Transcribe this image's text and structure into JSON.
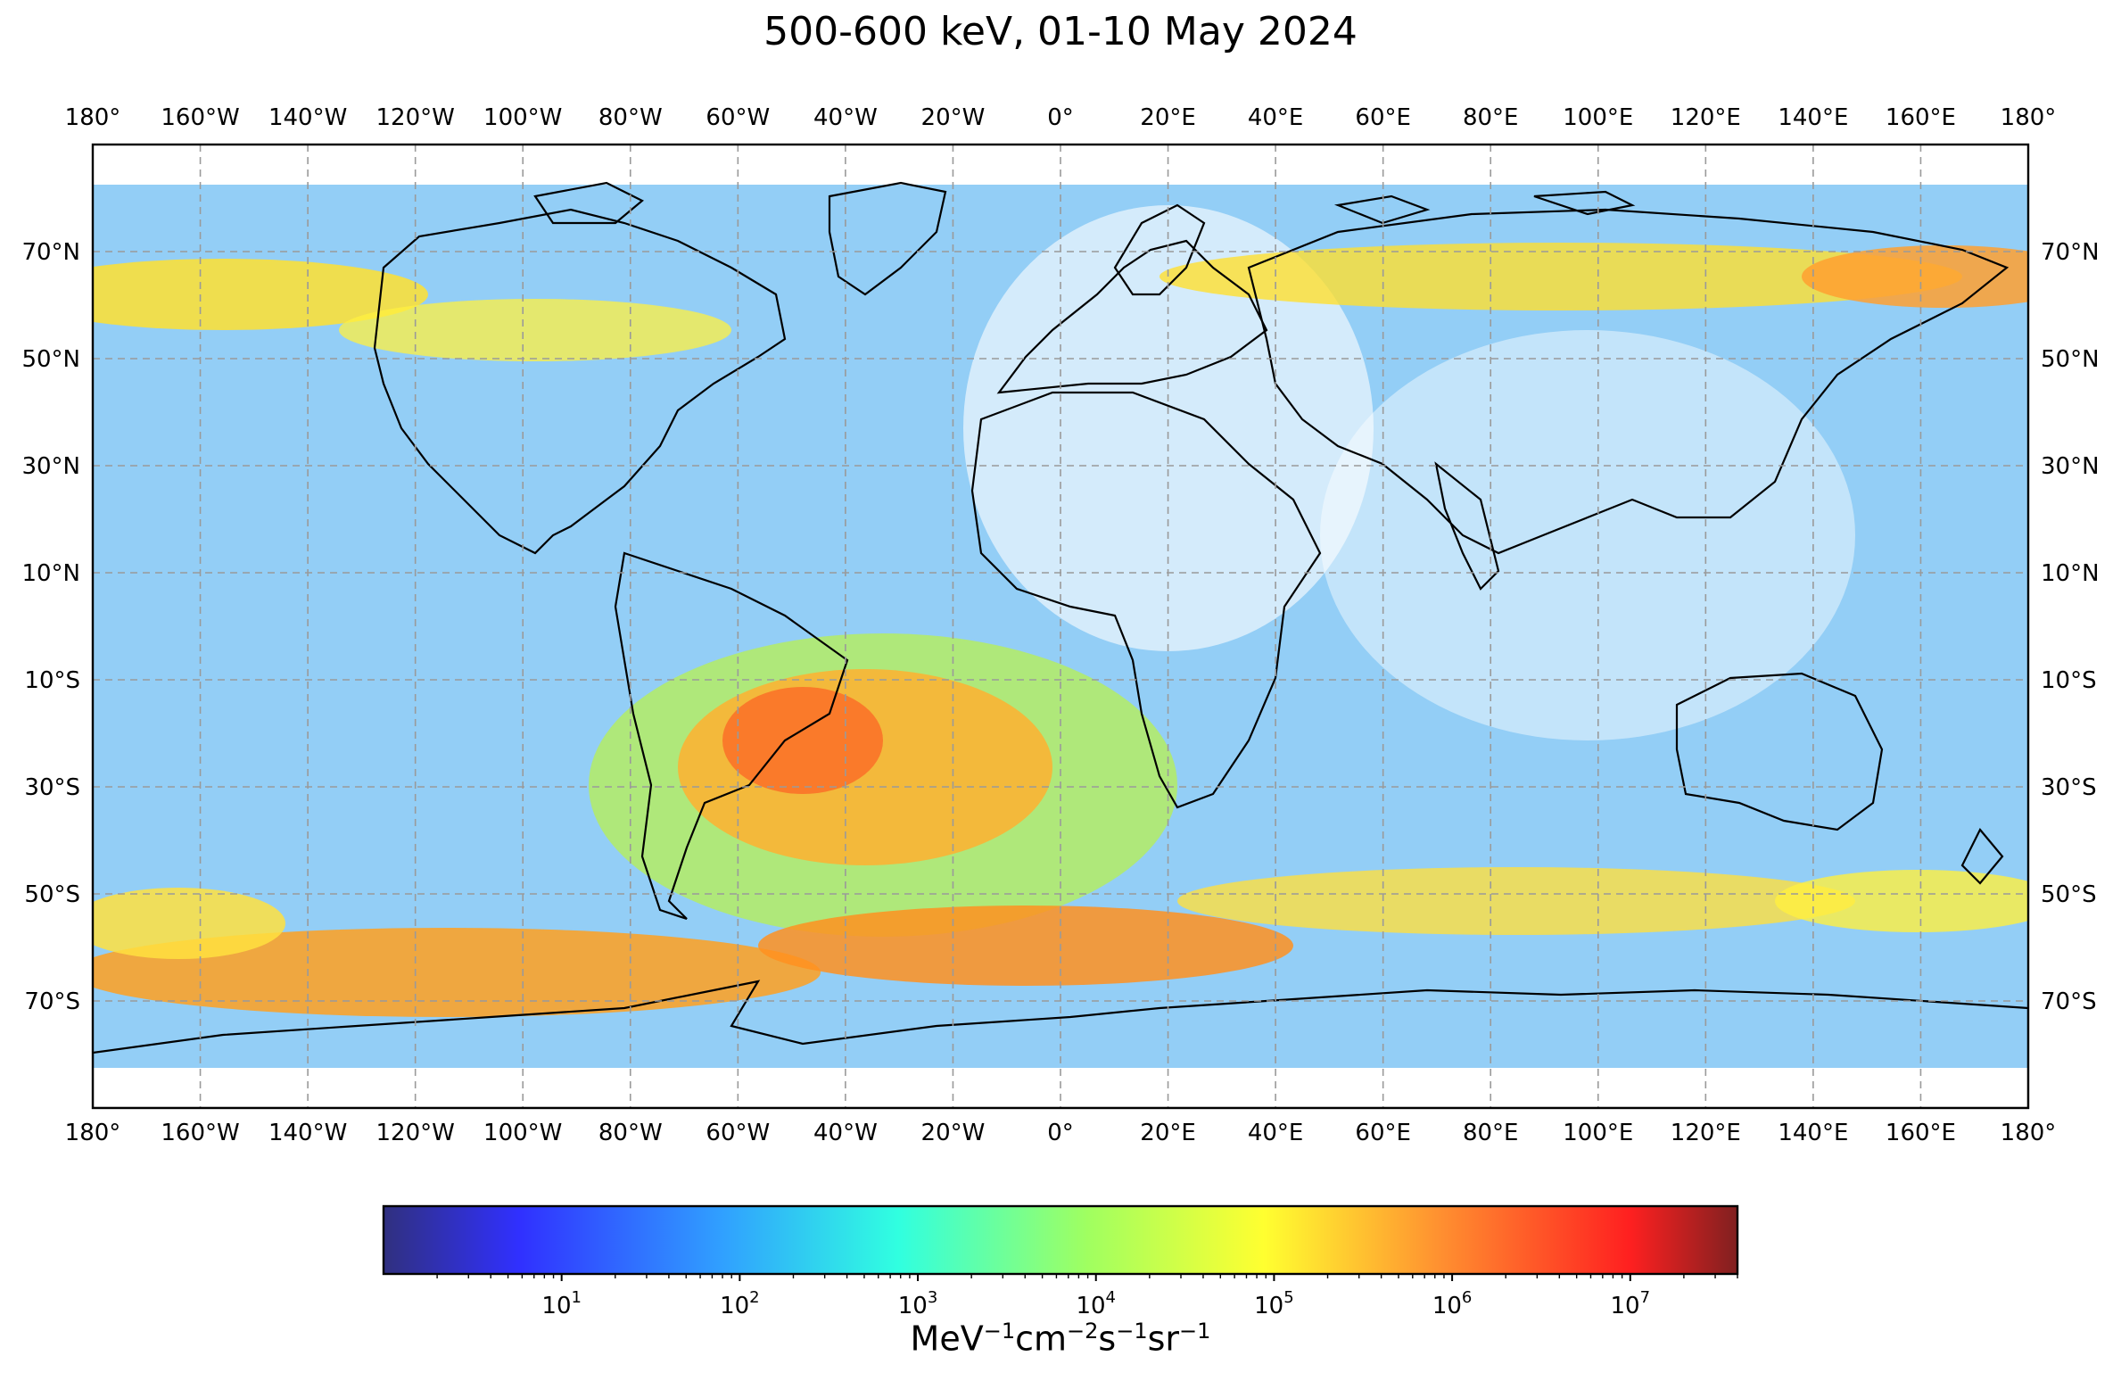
{
  "title": "500-600 keV, 01-10 May 2024",
  "map": {
    "lon_ticks": [
      "180°",
      "160°W",
      "140°W",
      "120°W",
      "100°W",
      "80°W",
      "60°W",
      "40°W",
      "20°W",
      "0°",
      "20°E",
      "40°E",
      "60°E",
      "80°E",
      "100°E",
      "120°E",
      "140°E",
      "160°E",
      "180°"
    ],
    "lat_ticks": [
      "70°N",
      "50°N",
      "30°N",
      "10°N",
      "10°S",
      "30°S",
      "50°S",
      "70°S"
    ],
    "lat_values": [
      70,
      50,
      30,
      10,
      -10,
      -30,
      -50,
      -70
    ],
    "extent": {
      "lon": [
        -180,
        180
      ],
      "lat": [
        -90,
        90
      ]
    },
    "gridlines": true
  },
  "colorbar": {
    "colormap": "jet",
    "colors": [
      "#30307f",
      "#3030ff",
      "#30a0ff",
      "#30ffe0",
      "#a0ff60",
      "#ffff30",
      "#ff9030",
      "#ff2020",
      "#802020"
    ],
    "scale": "log",
    "range": [
      1,
      40000000
    ],
    "ticks": [
      {
        "base": "10",
        "exp": "1",
        "value": 10
      },
      {
        "base": "10",
        "exp": "2",
        "value": 100
      },
      {
        "base": "10",
        "exp": "3",
        "value": 1000
      },
      {
        "base": "10",
        "exp": "4",
        "value": 10000
      },
      {
        "base": "10",
        "exp": "5",
        "value": 100000
      },
      {
        "base": "10",
        "exp": "6",
        "value": 1000000
      },
      {
        "base": "10",
        "exp": "7",
        "value": 10000000
      }
    ],
    "label_parts": {
      "mev": "MeV",
      "e1": "−1",
      "cm": "cm",
      "e2": "−2",
      "s": "s",
      "e3": "−1",
      "sr": "sr",
      "e4": "−1"
    }
  }
}
